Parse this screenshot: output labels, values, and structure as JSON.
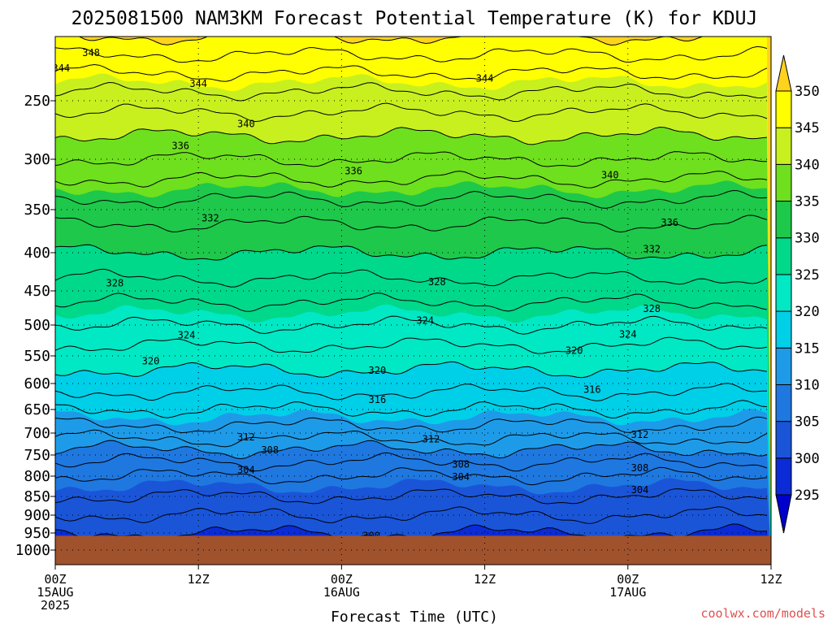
{
  "chart_data": {
    "type": "time-height contour (filled)",
    "title": "2025081500 NAM3KM Forecast Potential Temperature (K) for KDUJ",
    "xlabel": "Forecast Time (UTC)",
    "ylabel": "",
    "watermark": "coolwx.com/models",
    "x_ticks": [
      {
        "hours": 0,
        "lines": [
          "00Z",
          "15AUG",
          "2025"
        ]
      },
      {
        "hours": 12,
        "lines": [
          "12Z"
        ]
      },
      {
        "hours": 24,
        "lines": [
          "00Z",
          "16AUG"
        ]
      },
      {
        "hours": 36,
        "lines": [
          "12Z"
        ]
      },
      {
        "hours": 48,
        "lines": [
          "00Z",
          "17AUG"
        ]
      },
      {
        "hours": 60,
        "lines": [
          "12Z"
        ]
      }
    ],
    "xlim_hours": [
      0,
      60
    ],
    "y_axis": "pressure (hPa), inverted",
    "y_ticks": [
      250,
      300,
      350,
      400,
      450,
      500,
      550,
      600,
      650,
      700,
      750,
      800,
      850,
      900,
      950,
      1000
    ],
    "ylim_hpa": [
      1050,
      200
    ],
    "colorbar": {
      "levels": [
        295,
        300,
        305,
        310,
        315,
        320,
        325,
        330,
        335,
        340,
        345,
        350
      ],
      "colors": [
        "#0000cc",
        "#0a2bd6",
        "#1a55d8",
        "#1e78e0",
        "#1e9be8",
        "#00cfe8",
        "#00e8c4",
        "#00d88a",
        "#1ec84a",
        "#6ee01e",
        "#c8f01e",
        "#ffff00",
        "#ffd21e"
      ],
      "extend": "both"
    },
    "ground_color": "#a0522d",
    "ground_top_hpa": 958,
    "contour_interval_k": 2,
    "contour_labels": [
      {
        "value": 348,
        "hours": 3.0,
        "hpa": 212
      },
      {
        "value": 344,
        "hours": 0.5,
        "hpa": 224
      },
      {
        "value": 344,
        "hours": 12.0,
        "hpa": 236
      },
      {
        "value": 344,
        "hours": 36.0,
        "hpa": 232
      },
      {
        "value": 340,
        "hours": 16.0,
        "hpa": 269
      },
      {
        "value": 340,
        "hours": 46.5,
        "hpa": 315
      },
      {
        "value": 336,
        "hours": 10.5,
        "hpa": 288
      },
      {
        "value": 336,
        "hours": 25.0,
        "hpa": 311
      },
      {
        "value": 336,
        "hours": 51.5,
        "hpa": 364
      },
      {
        "value": 332,
        "hours": 13.0,
        "hpa": 359
      },
      {
        "value": 332,
        "hours": 50.0,
        "hpa": 395
      },
      {
        "value": 328,
        "hours": 5.0,
        "hpa": 439
      },
      {
        "value": 328,
        "hours": 32.0,
        "hpa": 437
      },
      {
        "value": 328,
        "hours": 50.0,
        "hpa": 475
      },
      {
        "value": 324,
        "hours": 11.0,
        "hpa": 515
      },
      {
        "value": 324,
        "hours": 31.0,
        "hpa": 492
      },
      {
        "value": 324,
        "hours": 48.0,
        "hpa": 514
      },
      {
        "value": 320,
        "hours": 8.0,
        "hpa": 558
      },
      {
        "value": 320,
        "hours": 27.0,
        "hpa": 575
      },
      {
        "value": 320,
        "hours": 43.5,
        "hpa": 540
      },
      {
        "value": 316,
        "hours": 27.0,
        "hpa": 630
      },
      {
        "value": 316,
        "hours": 45.0,
        "hpa": 610
      },
      {
        "value": 312,
        "hours": 16.0,
        "hpa": 707
      },
      {
        "value": 312,
        "hours": 31.5,
        "hpa": 712
      },
      {
        "value": 312,
        "hours": 49.0,
        "hpa": 702
      },
      {
        "value": 308,
        "hours": 18.0,
        "hpa": 737
      },
      {
        "value": 308,
        "hours": 34.0,
        "hpa": 770
      },
      {
        "value": 308,
        "hours": 49.0,
        "hpa": 779
      },
      {
        "value": 304,
        "hours": 16.0,
        "hpa": 784
      },
      {
        "value": 304,
        "hours": 34.0,
        "hpa": 800
      },
      {
        "value": 304,
        "hours": 49.0,
        "hpa": 832
      },
      {
        "value": 300,
        "hours": 26.5,
        "hpa": 956
      }
    ]
  }
}
